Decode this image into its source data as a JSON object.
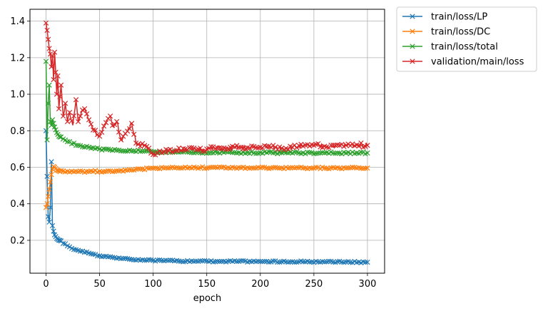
{
  "chart_data": {
    "type": "line",
    "title": "",
    "xlabel": "epoch",
    "ylabel": "",
    "xlim": [
      -15,
      316
    ],
    "ylim": [
      0.02,
      1.465
    ],
    "xticks": [
      0,
      50,
      100,
      150,
      200,
      250,
      300
    ],
    "yticks": [
      0.2,
      0.4,
      0.6,
      0.8,
      1.0,
      1.2,
      1.4
    ],
    "xtick_labels": [
      "0",
      "50",
      "100",
      "150",
      "200",
      "250",
      "300"
    ],
    "ytick_labels": [
      "0.2",
      "0.4",
      "0.6",
      "0.8",
      "1.0",
      "1.2",
      "1.4"
    ],
    "grid": true,
    "legend_position": "outside-upper-right",
    "marker": "x",
    "series": [
      {
        "name": "train/loss/LP",
        "color": "#1f77b4",
        "x": [
          0,
          1,
          2,
          3,
          4,
          5,
          6,
          7,
          8,
          10,
          12,
          15,
          20,
          25,
          30,
          40,
          50,
          60,
          70,
          80,
          90,
          100,
          110,
          120,
          140,
          160,
          180,
          200,
          220,
          240,
          260,
          280,
          300
        ],
        "y": [
          0.8,
          0.55,
          0.33,
          0.3,
          0.38,
          0.63,
          0.28,
          0.25,
          0.23,
          0.21,
          0.2,
          0.19,
          0.17,
          0.155,
          0.145,
          0.13,
          0.115,
          0.11,
          0.1,
          0.095,
          0.093,
          0.09,
          0.088,
          0.087,
          0.086,
          0.085,
          0.085,
          0.084,
          0.083,
          0.083,
          0.082,
          0.082,
          0.08
        ]
      },
      {
        "name": "train/loss/DC",
        "color": "#ff7f0e",
        "x": [
          0,
          1,
          2,
          3,
          4,
          5,
          6,
          7,
          8,
          10,
          12,
          15,
          20,
          30,
          40,
          50,
          60,
          70,
          80,
          90,
          100,
          120,
          140,
          160,
          180,
          200,
          220,
          240,
          260,
          280,
          300
        ],
        "y": [
          0.38,
          0.4,
          0.44,
          0.48,
          0.52,
          0.56,
          0.59,
          0.605,
          0.6,
          0.585,
          0.58,
          0.578,
          0.577,
          0.576,
          0.577,
          0.578,
          0.58,
          0.582,
          0.585,
          0.59,
          0.595,
          0.597,
          0.598,
          0.598,
          0.598,
          0.597,
          0.596,
          0.596,
          0.596,
          0.596,
          0.596
        ]
      },
      {
        "name": "train/loss/total",
        "color": "#2ca02c",
        "x": [
          0,
          1,
          2,
          3,
          4,
          5,
          6,
          7,
          8,
          10,
          12,
          15,
          20,
          30,
          40,
          50,
          60,
          70,
          80,
          90,
          100,
          120,
          140,
          160,
          180,
          200,
          220,
          240,
          260,
          280,
          300
        ],
        "y": [
          1.18,
          0.75,
          0.95,
          1.05,
          0.85,
          0.83,
          0.86,
          0.84,
          0.82,
          0.79,
          0.77,
          0.76,
          0.74,
          0.72,
          0.71,
          0.7,
          0.695,
          0.69,
          0.69,
          0.688,
          0.685,
          0.683,
          0.682,
          0.681,
          0.68,
          0.68,
          0.679,
          0.679,
          0.679,
          0.678,
          0.678
        ]
      },
      {
        "name": "validation/main/loss",
        "color": "#d62728",
        "x": [
          0,
          1,
          2,
          3,
          4,
          5,
          6,
          7,
          8,
          9,
          10,
          11,
          12,
          14,
          16,
          18,
          20,
          22,
          25,
          28,
          30,
          33,
          36,
          40,
          45,
          50,
          55,
          60,
          63,
          66,
          70,
          75,
          80,
          85,
          90,
          95,
          100,
          105,
          110,
          120,
          130,
          140,
          150,
          160,
          170,
          180,
          190,
          200,
          210,
          220,
          230,
          240,
          250,
          260,
          270,
          280,
          290,
          300
        ],
        "y": [
          1.39,
          1.35,
          1.3,
          1.25,
          1.22,
          1.15,
          1.21,
          1.08,
          1.23,
          1.12,
          1.0,
          1.1,
          0.92,
          1.05,
          0.88,
          0.95,
          0.85,
          0.9,
          0.83,
          0.97,
          0.85,
          0.9,
          0.92,
          0.86,
          0.8,
          0.77,
          0.83,
          0.88,
          0.82,
          0.85,
          0.75,
          0.79,
          0.84,
          0.72,
          0.73,
          0.7,
          0.67,
          0.69,
          0.685,
          0.69,
          0.7,
          0.695,
          0.7,
          0.705,
          0.7,
          0.71,
          0.705,
          0.71,
          0.71,
          0.705,
          0.71,
          0.715,
          0.72,
          0.715,
          0.72,
          0.72,
          0.722,
          0.72
        ]
      }
    ]
  }
}
